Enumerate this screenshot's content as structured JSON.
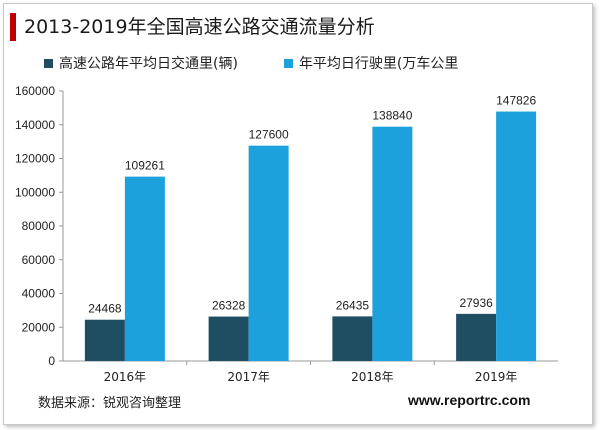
{
  "title": "2013-2019年全国高速公路交通流量分析",
  "source": "数据来源：锐观咨询整理",
  "website": "www.reportrc.com",
  "colors": {
    "accent": "#c00000",
    "series1": "#1f4e62",
    "series2": "#1da1dc"
  },
  "chart_data": {
    "type": "bar",
    "title": "2013-2019年全国高速公路交通流量分析",
    "xlabel": "",
    "ylabel": "",
    "categories": [
      "2016年",
      "2017年",
      "2018年",
      "2019年"
    ],
    "series": [
      {
        "name": "高速公路年平均日交通里(辆)",
        "values": [
          24468,
          26328,
          26435,
          27936
        ]
      },
      {
        "name": "年平均日行驶里(万车公里",
        "values": [
          109261,
          127600,
          138840,
          147826
        ]
      }
    ],
    "ylim": [
      0,
      160000
    ],
    "yticks": [
      0,
      20000,
      40000,
      60000,
      80000,
      100000,
      120000,
      140000,
      160000
    ],
    "grid": false,
    "legend": "top-left"
  }
}
